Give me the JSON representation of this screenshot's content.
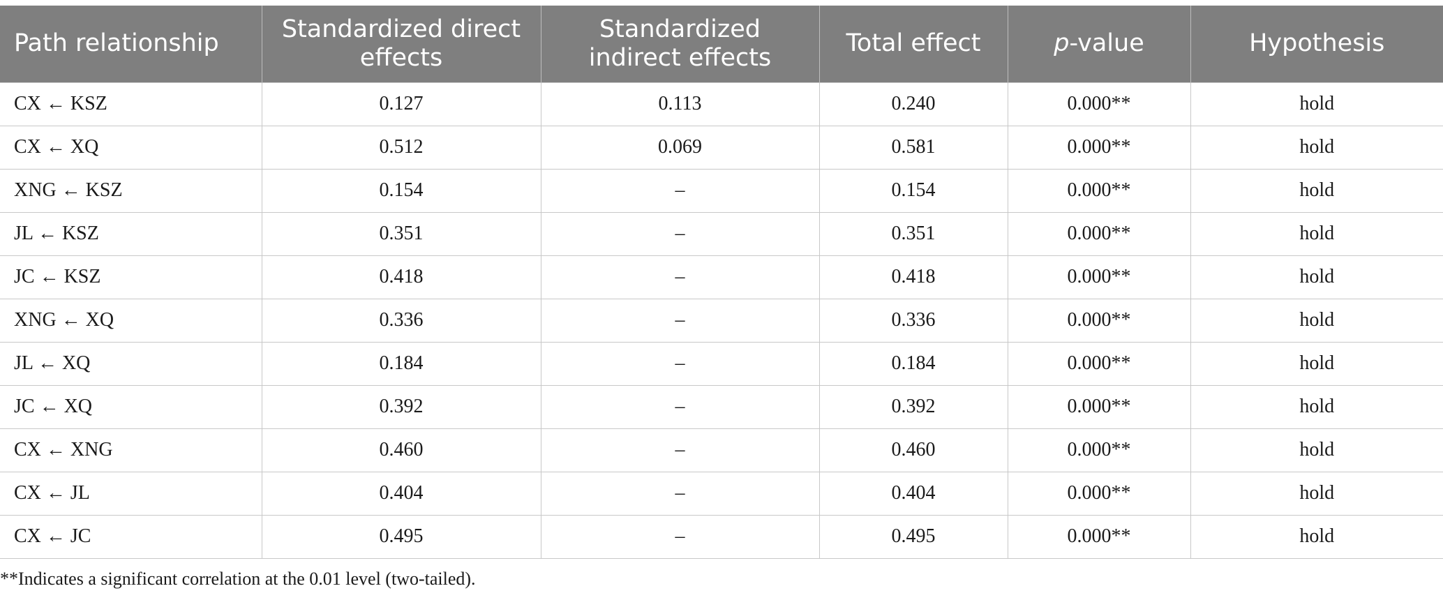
{
  "table": {
    "headers": [
      {
        "pre": "Path relationship",
        "em": "",
        "post": ""
      },
      {
        "pre": "Standardized direct effects",
        "em": "",
        "post": ""
      },
      {
        "pre": "Standardized indirect effects",
        "em": "",
        "post": ""
      },
      {
        "pre": "Total effect",
        "em": "",
        "post": ""
      },
      {
        "pre": "",
        "em": "p",
        "post": "-value"
      },
      {
        "pre": "Hypothesis",
        "em": "",
        "post": ""
      }
    ],
    "rows": [
      [
        "CX ← KSZ",
        "0.127",
        "0.113",
        "0.240",
        "0.000**",
        "hold"
      ],
      [
        "CX ← XQ",
        "0.512",
        "0.069",
        "0.581",
        "0.000**",
        "hold"
      ],
      [
        "XNG ← KSZ",
        "0.154",
        "–",
        "0.154",
        "0.000**",
        "hold"
      ],
      [
        "JL ← KSZ",
        "0.351",
        "–",
        "0.351",
        "0.000**",
        "hold"
      ],
      [
        "JC ← KSZ",
        "0.418",
        "–",
        "0.418",
        "0.000**",
        "hold"
      ],
      [
        "XNG ← XQ",
        "0.336",
        "–",
        "0.336",
        "0.000**",
        "hold"
      ],
      [
        "JL ← XQ",
        "0.184",
        "–",
        "0.184",
        "0.000**",
        "hold"
      ],
      [
        "JC ← XQ",
        "0.392",
        "–",
        "0.392",
        "0.000**",
        "hold"
      ],
      [
        "CX ← XNG",
        "0.460",
        "–",
        "0.460",
        "0.000**",
        "hold"
      ],
      [
        "CX ← JL",
        "0.404",
        "–",
        "0.404",
        "0.000**",
        "hold"
      ],
      [
        "CX ← JC",
        "0.495",
        "–",
        "0.495",
        "0.000**",
        "hold"
      ]
    ]
  },
  "footnote": "**Indicates a significant correlation at the 0.01 level (two-tailed).",
  "colors": {
    "header_background": "#7f7f7f",
    "header_text": "#ffffff",
    "grid_lines": "#c8c8c8"
  }
}
